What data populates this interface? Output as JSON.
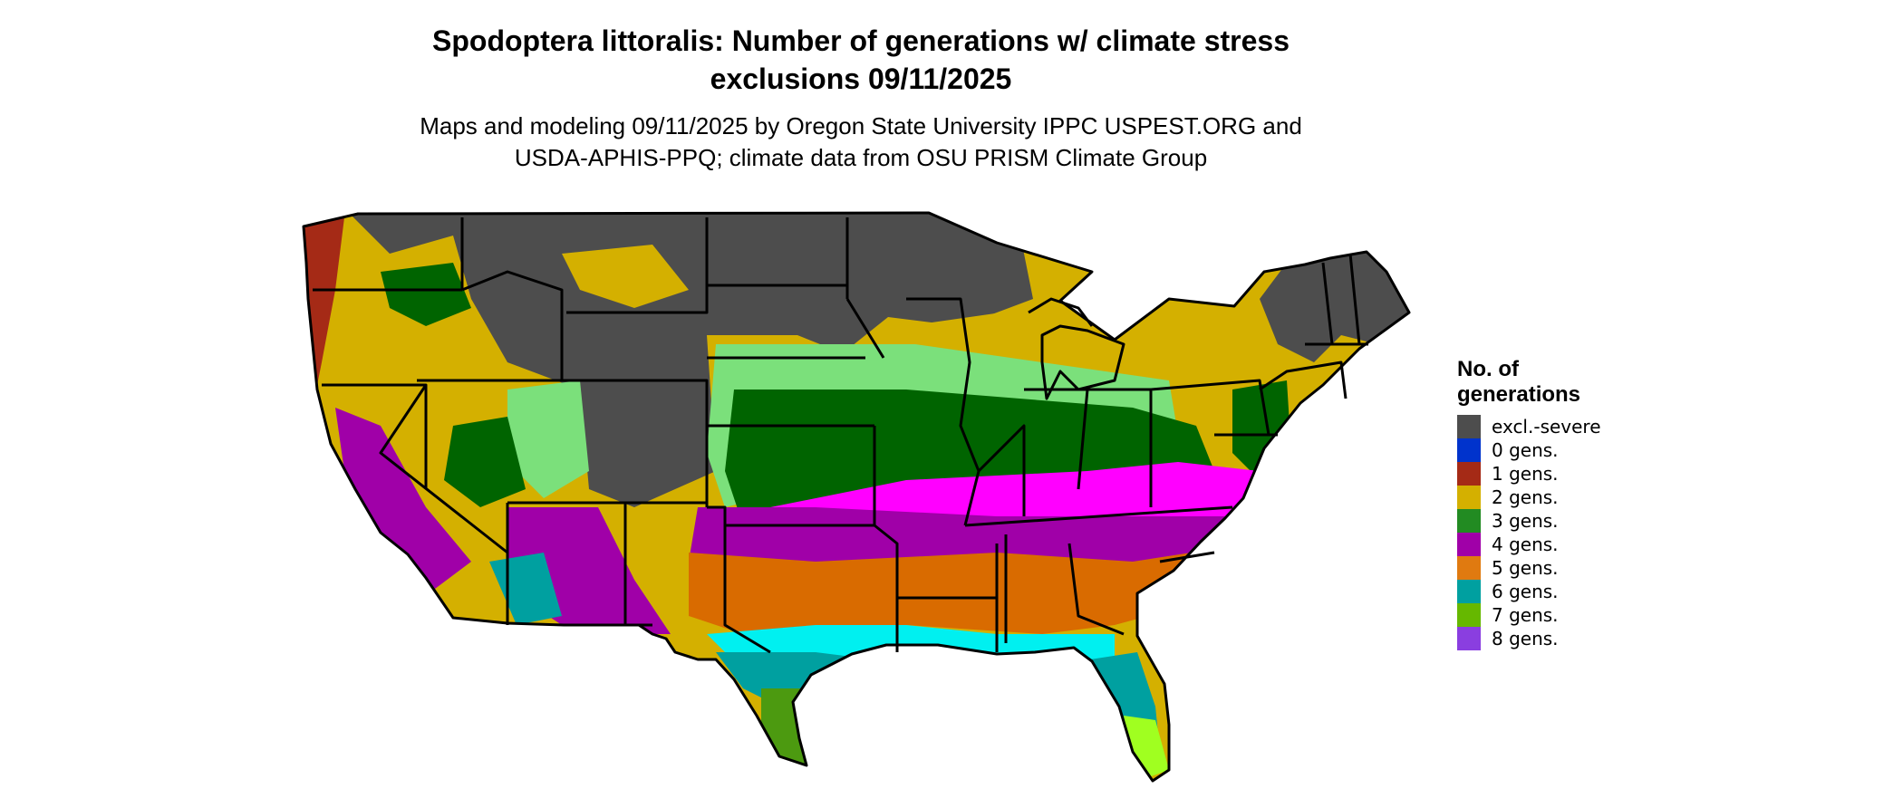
{
  "title": {
    "line1": "Spodoptera littoralis: Number of generations w/ climate stress",
    "line2": "exclusions 09/11/2025"
  },
  "subtitle": {
    "line1": "Maps and modeling 09/11/2025 by Oregon State University IPPC USPEST.ORG and",
    "line2": "USDA-APHIS-PPQ; climate data from OSU PRISM Climate Group"
  },
  "legend": {
    "title_line1": "No. of",
    "title_line2": "generations",
    "items": [
      {
        "label": "excl.-severe",
        "color": "#4d4d4d"
      },
      {
        "label": "0 gens.",
        "color": "#0033cc"
      },
      {
        "label": "1 gens.",
        "color": "#a52a16"
      },
      {
        "label": "2 gens.",
        "color": "#d4b000"
      },
      {
        "label": "3 gens.",
        "color": "#228b22"
      },
      {
        "label": "4 gens.",
        "color": "#a000a8"
      },
      {
        "label": "5 gens.",
        "color": "#e07a10"
      },
      {
        "label": "6 gens.",
        "color": "#00a0a0"
      },
      {
        "label": "7 gens.",
        "color": "#66b800"
      },
      {
        "label": "8 gens.",
        "color": "#8a3ee0"
      }
    ]
  },
  "map": {
    "colors": {
      "excl": "#4d4d4d",
      "gen1": "#a52a16",
      "gen2": "#d4b000",
      "gen3": "#006400",
      "gen3light": "#7be07b",
      "gen4": "#a000a8",
      "gen4bright": "#ff00ff",
      "gen5": "#d96b00",
      "gen6": "#00a0a0",
      "gen6bright": "#00f0f0",
      "gen7": "#4c9a10",
      "gen7bright": "#a0ff20",
      "gen8": "#8a3ee0"
    }
  }
}
